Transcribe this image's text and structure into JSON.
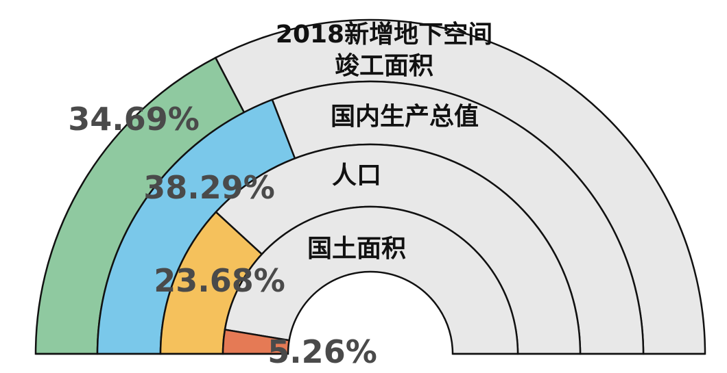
{
  "chart_data": {
    "type": "pie",
    "subtype": "nested-semicircle-rings",
    "title": "",
    "unit": "%",
    "rings": [
      {
        "category": "2018新增地下空间\n竣工面积",
        "value": 34.69,
        "value_label": "34.69%",
        "color": "#8fc9a0"
      },
      {
        "category": "国内生产总值",
        "value": 38.29,
        "value_label": "38.29%",
        "color": "#7ac8ea"
      },
      {
        "category": "人口",
        "value": 23.68,
        "value_label": "23.68%",
        "color": "#f5c15c"
      },
      {
        "category": "国土面积",
        "value": 5.26,
        "value_label": "5.26%",
        "color": "#e57a55"
      }
    ],
    "remainder_color": "#e8e8e8",
    "outline_color": "#111111"
  }
}
